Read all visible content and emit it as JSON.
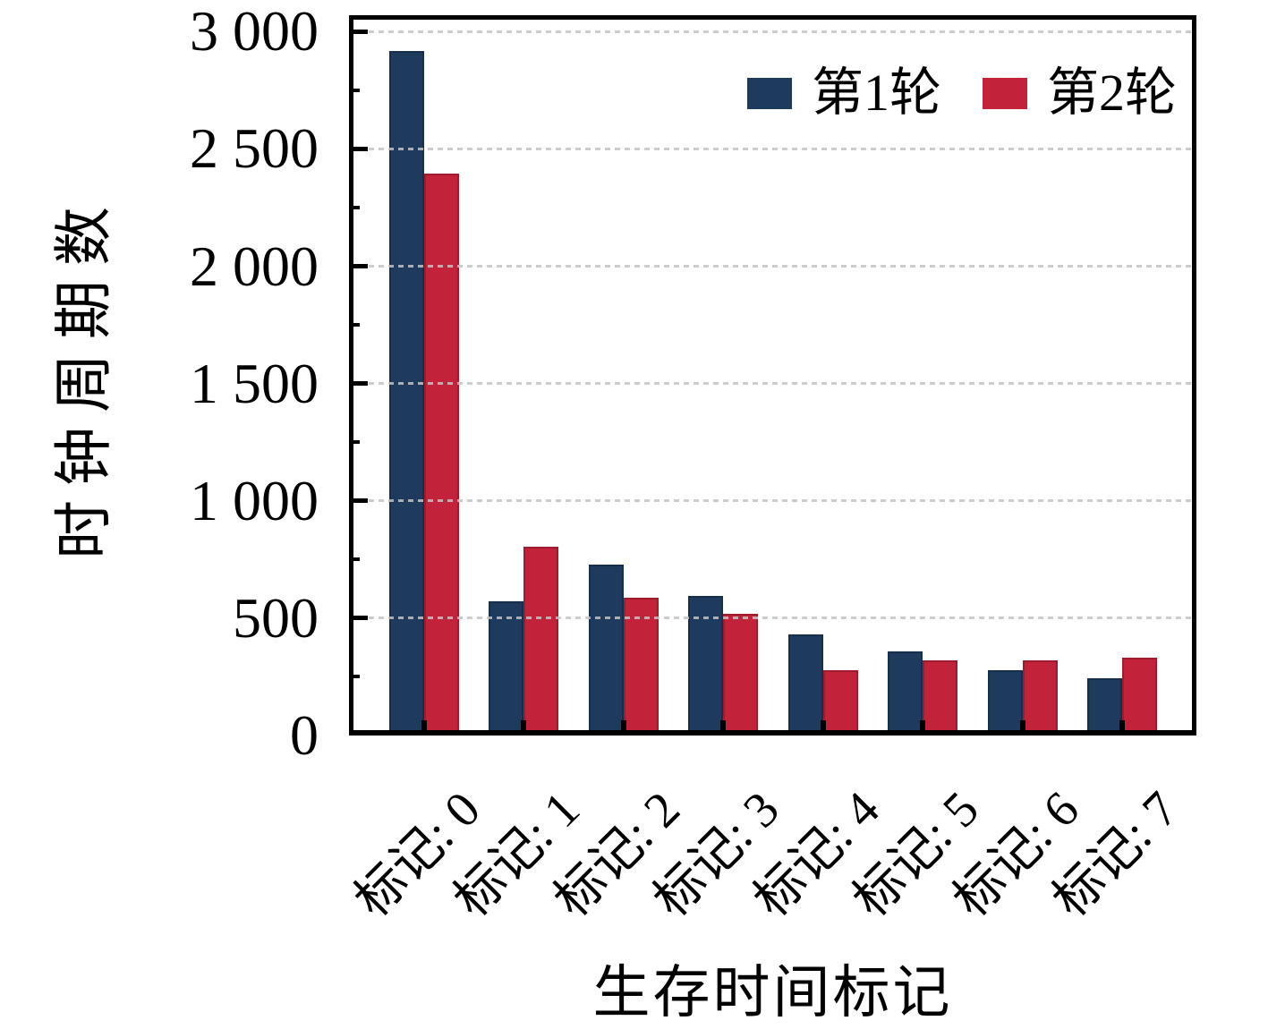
{
  "figure": {
    "background": "#ffffff"
  },
  "chart_data": {
    "type": "bar",
    "title": "",
    "xlabel": "生存时间标记",
    "ylabel": "时钟周期数",
    "categories": [
      "标记: 0",
      "标记: 1",
      "标记: 2",
      "标记: 3",
      "标记: 4",
      "标记: 5",
      "标记: 6",
      "标记: 7"
    ],
    "series": [
      {
        "name": "第1轮",
        "color": "#1e3a5c",
        "values": [
          2916,
          571,
          729,
          594,
          432,
          358,
          277,
          245
        ]
      },
      {
        "name": "第2轮",
        "color": "#c3233a",
        "values": [
          2396,
          805,
          588,
          520,
          277,
          321,
          321,
          332
        ]
      }
    ],
    "ylim": [
      0,
      3070
    ],
    "yticks": {
      "values": [
        0,
        500,
        1000,
        1500,
        2000,
        2500,
        3000
      ],
      "labels": [
        "0",
        "500",
        "1 000",
        "1 500",
        "2 000",
        "2 500",
        "3 000"
      ]
    },
    "yticks_minor": [
      250,
      750,
      1250,
      1750,
      2250,
      2750
    ],
    "grid": {
      "horizontal": true,
      "style": "dashed",
      "color": "#c3c3c3",
      "drawn_over_bars": true
    },
    "legend_position": "top-right-inside",
    "x_tick_label_rotation_deg": -45
  }
}
